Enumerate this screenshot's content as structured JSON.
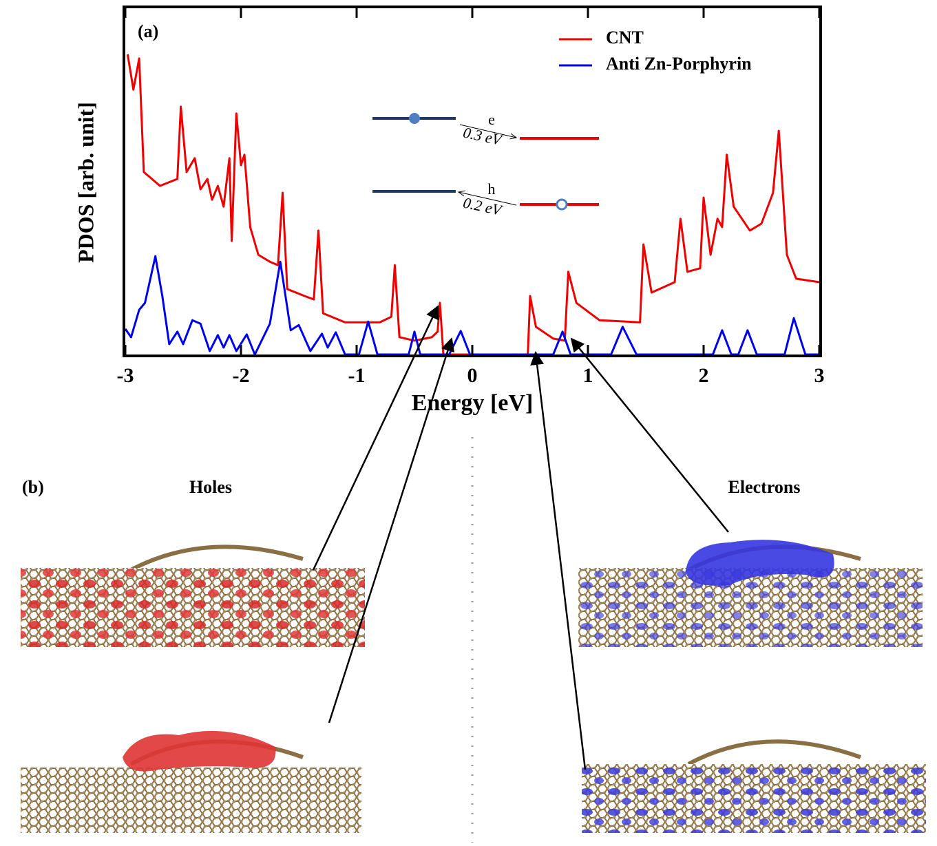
{
  "chart_data": {
    "type": "line",
    "panel_a_label": "(a)",
    "xlabel": "Energy [eV]",
    "ylabel": "PDOS [arb. unit]",
    "xlim": [
      -3,
      3
    ],
    "xticks": [
      -3,
      -2,
      -1,
      0,
      1,
      2,
      3
    ],
    "ylim": [
      0,
      100
    ],
    "legend": "upper right",
    "series": [
      {
        "name": "CNT",
        "color": "#f00000",
        "x": [
          -2.98,
          -2.93,
          -2.88,
          -2.84,
          -2.7,
          -2.55,
          -2.52,
          -2.47,
          -2.4,
          -2.35,
          -2.29,
          -2.25,
          -2.2,
          -2.15,
          -2.1,
          -2.08,
          -2.04,
          -2.0,
          -1.97,
          -1.92,
          -1.85,
          -1.75,
          -1.68,
          -1.64,
          -1.6,
          -1.45,
          -1.37,
          -1.33,
          -1.29,
          -1.1,
          -0.8,
          -0.7,
          -0.67,
          -0.63,
          -0.5,
          -0.35,
          -0.3,
          -0.28,
          -0.25,
          0.48,
          0.5,
          0.55,
          0.7,
          0.8,
          0.83,
          0.9,
          1.1,
          1.45,
          1.48,
          1.55,
          1.75,
          1.8,
          1.86,
          1.97,
          2.0,
          2.06,
          2.12,
          2.16,
          2.2,
          2.26,
          2.4,
          2.5,
          2.6,
          2.65,
          2.72,
          2.8,
          3.0
        ],
        "values": [
          86.7,
          76.5,
          85.5,
          52.7,
          48.7,
          50.7,
          71.6,
          52.7,
          56.7,
          47.7,
          50.7,
          44.7,
          48.7,
          42.7,
          56.7,
          32.8,
          69.6,
          54.7,
          57.7,
          36.8,
          28.8,
          26.8,
          25.8,
          46.7,
          18.9,
          16.9,
          15.9,
          35.8,
          11.9,
          9.3,
          9.3,
          10.9,
          25.8,
          5,
          4,
          5,
          6.6,
          14.9,
          0,
          0,
          16.9,
          8,
          4.6,
          4,
          23.9,
          14.9,
          9.9,
          9.3,
          31.8,
          17.9,
          20.9,
          39.2,
          23.9,
          24.9,
          45.3,
          28.8,
          39.2,
          36.8,
          57.7,
          42.7,
          35.8,
          37.8,
          46.7,
          64.6,
          28.8,
          21.9,
          20.9
        ]
      },
      {
        "name": "Anti Zn-Porphyrin",
        "color": "#0000f0",
        "x": [
          -3,
          -2.95,
          -2.88,
          -2.83,
          -2.74,
          -2.68,
          -2.62,
          -2.55,
          -2.5,
          -2.42,
          -2.35,
          -2.27,
          -2.2,
          -2.15,
          -2.1,
          -2.04,
          -1.95,
          -1.88,
          -1.75,
          -1.66,
          -1.57,
          -1.5,
          -1.4,
          -1.3,
          -1.25,
          -1.18,
          -1.1,
          -0.98,
          -0.9,
          -0.82,
          -0.55,
          -0.5,
          -0.45,
          -0.2,
          -0.1,
          -0.02,
          0.7,
          0.78,
          0.85,
          1.2,
          1.3,
          1.42,
          2.08,
          2.16,
          2.24,
          2.3,
          2.38,
          2.46,
          2.7,
          2.78,
          2.88,
          3.0
        ],
        "values": [
          7.4,
          5,
          12.9,
          14.9,
          28.4,
          16.9,
          3,
          6.6,
          3,
          9.9,
          8.9,
          1,
          5.6,
          2,
          5.6,
          1,
          5.8,
          0,
          8.9,
          26.8,
          7,
          8.5,
          1,
          6,
          2,
          6.4,
          0,
          0,
          9.5,
          0,
          0,
          6.6,
          0,
          0,
          6.8,
          0,
          0,
          6.6,
          0,
          0,
          8,
          0,
          0,
          7,
          0,
          0,
          7,
          0,
          0,
          10.5,
          0,
          0
        ]
      }
    ],
    "inset": {
      "electron_label": "e",
      "electron_gap": "0.3 eV",
      "hole_label": "h",
      "hole_gap": "0.2 eV"
    },
    "panel_b": {
      "label": "(b)",
      "left_title": "Holes",
      "right_title": "Electrons"
    }
  }
}
